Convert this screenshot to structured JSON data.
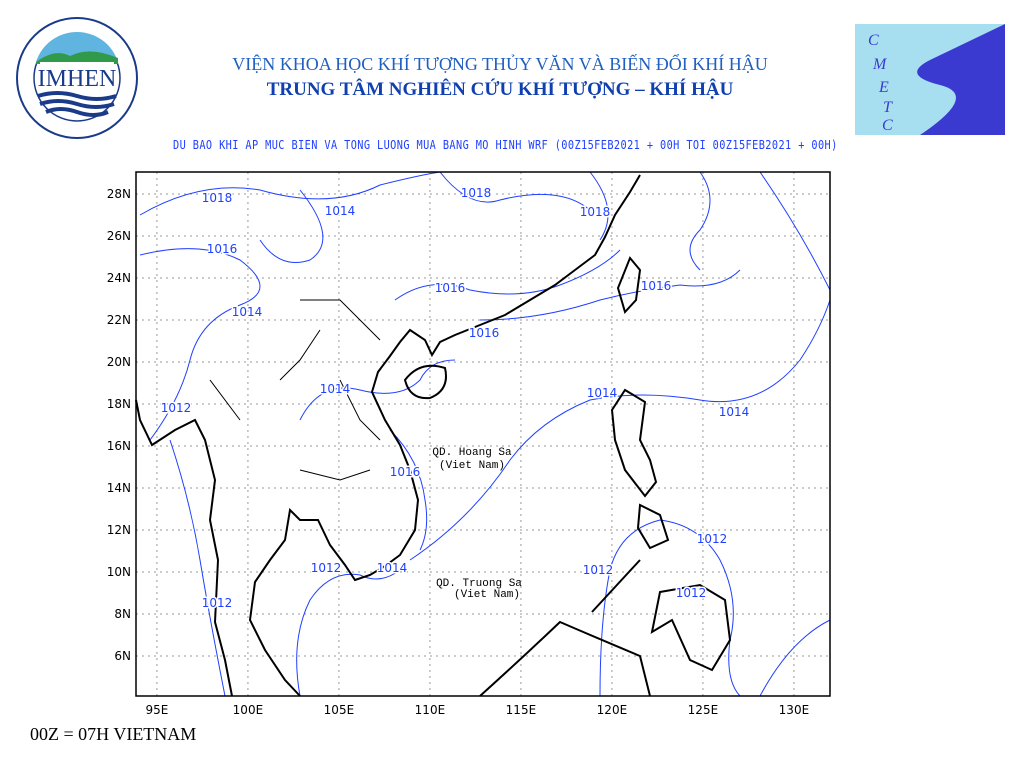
{
  "header": {
    "institute": "VIỆN KHOA HỌC KHÍ TƯỢNG THỦY VĂN VÀ BIẾN ĐỔI KHÍ HẬU",
    "center": "TRUNG TÂM NGHIÊN CỨU KHÍ TƯỢNG – KHÍ HẬU",
    "left_logo": {
      "text": "IMHEN",
      "ring_text": "VIỆN KHOA HỌC KHÍ TƯỢNG THỦY VĂN VÀ BIẾN ĐỔI KHÍ HẬU"
    },
    "right_logo": {
      "letters": [
        "C",
        "M",
        "E",
        "T",
        "C"
      ]
    }
  },
  "map": {
    "title": "DU BAO KHI AP MUC BIEN VA TONG LUONG MUA BANG MO HINH WRF (00Z15FEB2021 + 00H TOI 00Z15FEB2021 + 00H)",
    "lon_ticks": [
      "95E",
      "100E",
      "105E",
      "110E",
      "115E",
      "120E",
      "125E",
      "130E"
    ],
    "lat_ticks": [
      "28N",
      "26N",
      "24N",
      "22N",
      "20N",
      "18N",
      "16N",
      "14N",
      "12N",
      "10N",
      "8N",
      "6N"
    ],
    "contour_labels": [
      "1018",
      "1014",
      "1018",
      "1018",
      "1016",
      "1016",
      "1016",
      "1014",
      "1016",
      "1014",
      "1014",
      "1012",
      "1014",
      "1016",
      "1012",
      "1012",
      "1014",
      "1012",
      "1012",
      "1012"
    ],
    "place_labels": [
      "QD. Hoang Sa",
      "(Viet Nam)",
      "QD. Truong Sa",
      "(Viet Nam)"
    ],
    "colors": {
      "contour": "#2040ff",
      "coast": "#000000",
      "grid": "#999999"
    }
  },
  "footer": "00Z = 07H VIETNAM"
}
